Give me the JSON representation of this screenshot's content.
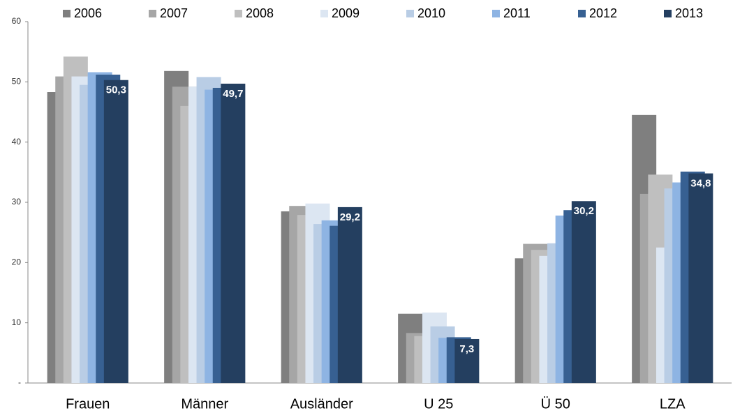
{
  "chart_data": {
    "type": "bar",
    "categories": [
      "Frauen",
      "Männer",
      "Ausländer",
      "U 25",
      "Ü 50",
      "LZA"
    ],
    "series": [
      {
        "name": "2006",
        "color": "#7f7f7f",
        "values": [
          48.3,
          51.8,
          28.5,
          11.5,
          20.7,
          44.5
        ]
      },
      {
        "name": "2007",
        "color": "#a6a6a6",
        "values": [
          50.9,
          49.2,
          29.4,
          8.3,
          23.1,
          31.4
        ]
      },
      {
        "name": "2008",
        "color": "#bfbfbf",
        "values": [
          54.2,
          46.0,
          27.9,
          7.8,
          22.1,
          34.6
        ]
      },
      {
        "name": "2009",
        "color": "#dce6f2",
        "values": [
          50.9,
          49.2,
          29.8,
          11.7,
          21.1,
          22.5
        ]
      },
      {
        "name": "2010",
        "color": "#b9cde5",
        "values": [
          49.5,
          50.8,
          26.4,
          9.4,
          23.2,
          32.3
        ]
      },
      {
        "name": "2011",
        "color": "#8eb4e3",
        "values": [
          51.6,
          48.7,
          27.0,
          7.5,
          27.8,
          33.3
        ]
      },
      {
        "name": "2012",
        "color": "#376092",
        "values": [
          51.2,
          49.0,
          26.1,
          7.6,
          28.7,
          35.1
        ]
      },
      {
        "name": "2013",
        "color": "#243f60",
        "values": [
          50.3,
          49.7,
          29.2,
          7.3,
          30.2,
          34.8
        ],
        "value_labels": [
          "50,3",
          "49,7",
          "29,2",
          "7,3",
          "30,2",
          "34,8"
        ]
      }
    ],
    "ylim": [
      0,
      60
    ],
    "yticks": [
      {
        "value": 0,
        "label": "-"
      },
      10,
      20,
      30,
      40,
      50,
      60
    ],
    "grid": false,
    "legend": "top"
  }
}
